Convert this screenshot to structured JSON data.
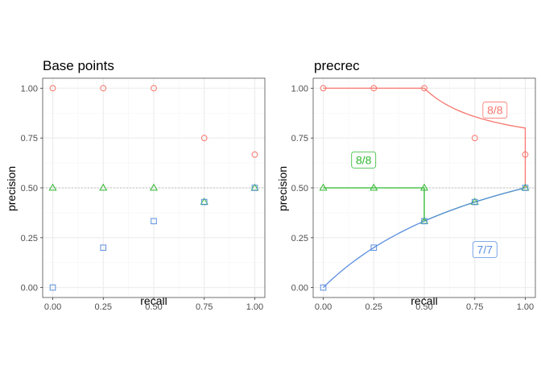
{
  "colors": {
    "red": "#f8766d",
    "green": "#2eb82e",
    "blue": "#5b8fe0",
    "baseline": "#bdbdbd",
    "grid_major": "#ebebeb",
    "grid_minor": "#f5f5f5",
    "border": "#4d4d4d"
  },
  "chart_data": [
    {
      "type": "scatter",
      "title": "Base points",
      "xlabel": "recall",
      "ylabel": "precision",
      "xlim": [
        -0.05,
        1.05
      ],
      "ylim": [
        -0.05,
        1.05
      ],
      "x_ticks": [
        "0.00",
        "0.25",
        "0.50",
        "0.75",
        "1.00"
      ],
      "y_ticks": [
        "0.00",
        "0.25",
        "0.50",
        "0.75",
        "1.00"
      ],
      "baseline_y": 0.5,
      "grid": true,
      "series": [
        {
          "color": "red",
          "marker": "circle",
          "x": [
            0,
            0.25,
            0.5,
            0.75,
            1.0
          ],
          "y": [
            1.0,
            1.0,
            1.0,
            0.75,
            0.667
          ]
        },
        {
          "color": "green",
          "marker": "triangle",
          "x": [
            0,
            0.25,
            0.5,
            0.75,
            1.0
          ],
          "y": [
            0.5,
            0.5,
            0.5,
            0.429,
            0.5
          ]
        },
        {
          "color": "blue",
          "marker": "square",
          "x": [
            0,
            0.25,
            0.5,
            0.75,
            1.0
          ],
          "y": [
            0.0,
            0.2,
            0.333,
            0.429,
            0.5
          ]
        }
      ],
      "annotations": []
    },
    {
      "type": "line",
      "title": "precrec",
      "xlabel": "recall",
      "ylabel": "precision",
      "xlim": [
        -0.05,
        1.05
      ],
      "ylim": [
        -0.05,
        1.05
      ],
      "x_ticks": [
        "0.00",
        "0.25",
        "0.50",
        "0.75",
        "1.00"
      ],
      "y_ticks": [
        "0.00",
        "0.25",
        "0.50",
        "0.75",
        "1.00"
      ],
      "baseline_y": 0.5,
      "grid": true,
      "series": [
        {
          "color": "red",
          "marker": "circle",
          "x": [
            0,
            0.25,
            0.5,
            0.75,
            1.0
          ],
          "y": [
            1.0,
            1.0,
            1.0,
            0.75,
            0.667
          ],
          "curve": "red"
        },
        {
          "color": "green",
          "marker": "triangle",
          "x": [
            0,
            0.25,
            0.5,
            0.5,
            0.75,
            1.0
          ],
          "y": [
            0.5,
            0.5,
            0.5,
            0.333,
            0.429,
            0.5
          ],
          "curve": "green"
        },
        {
          "color": "blue",
          "marker": "square",
          "x": [
            0,
            0.25,
            0.5,
            0.75,
            1.0
          ],
          "y": [
            0.0,
            0.2,
            0.333,
            0.429,
            0.5
          ],
          "curve": "blue"
        }
      ],
      "annotations": [
        {
          "text": "8/8",
          "color": "red",
          "x": 0.85,
          "y": 0.89
        },
        {
          "text": "8/8",
          "color": "green",
          "x": 0.2,
          "y": 0.64
        },
        {
          "text": "7/7",
          "color": "blue",
          "x": 0.8,
          "y": 0.19
        }
      ]
    }
  ]
}
